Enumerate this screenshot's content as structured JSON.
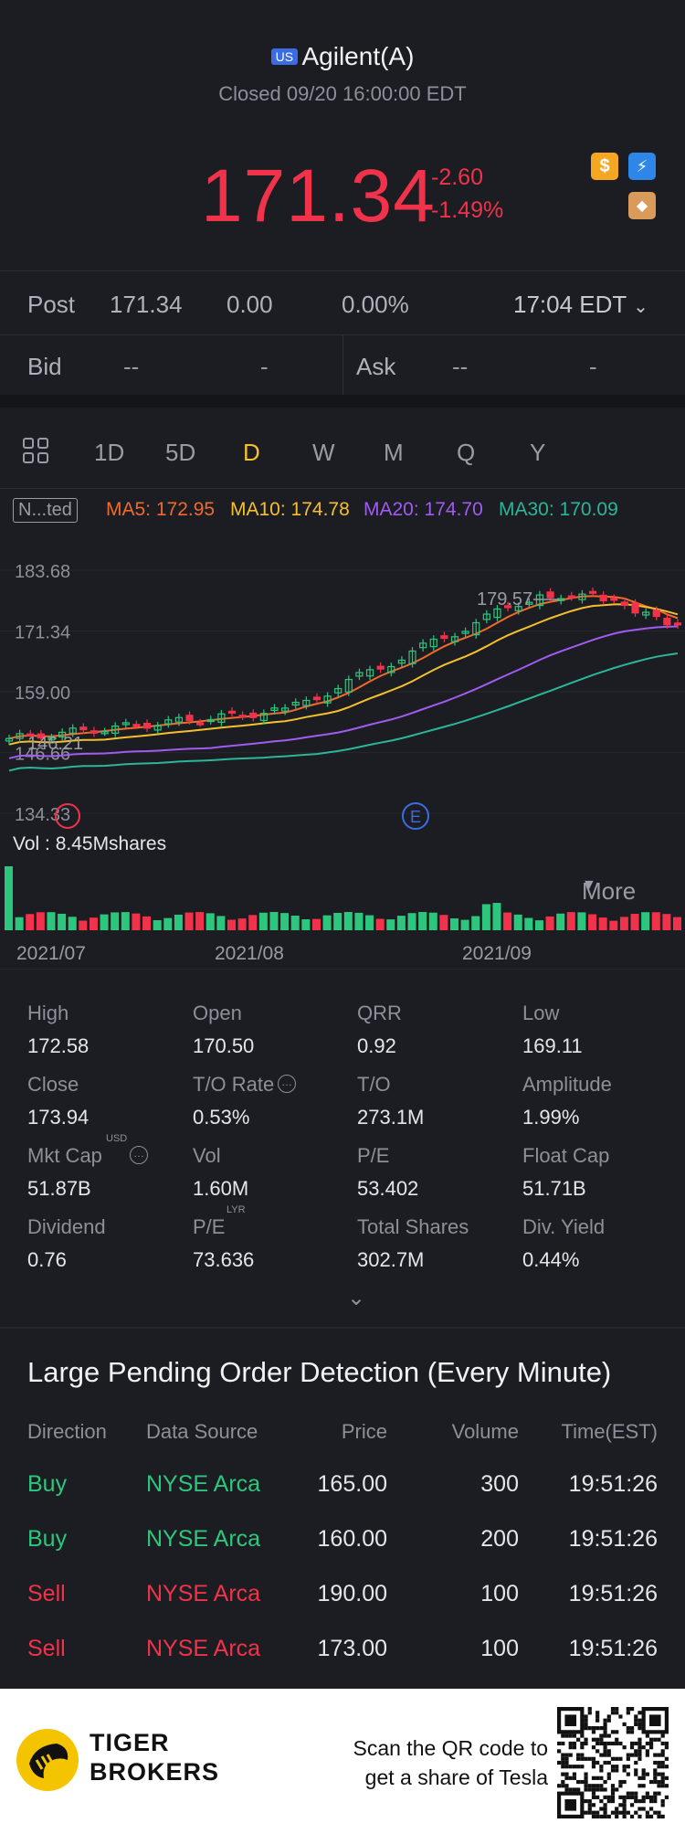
{
  "header": {
    "market_badge": "US",
    "title": "Agilent(A)",
    "status": "Closed 09/20 16:00:00 EDT"
  },
  "quote": {
    "price": "171.34",
    "change": "-2.60",
    "change_pct": "-1.49%",
    "icons": [
      "dollar-icon",
      "lightning-icon",
      "academy-icon"
    ]
  },
  "post": {
    "label": "Post",
    "price": "171.34",
    "change": "0.00",
    "pct": "0.00%",
    "time": "17:04 EDT"
  },
  "bidask": {
    "bid_label": "Bid",
    "bid_price": "--",
    "bid_size": "-",
    "ask_label": "Ask",
    "ask_price": "--",
    "ask_size": "-"
  },
  "tabs": {
    "items": [
      "1D",
      "5D",
      "D",
      "W",
      "M",
      "Q",
      "Y"
    ],
    "more": "More",
    "active": "D"
  },
  "chart_header": {
    "adjust": "N...ted",
    "ma5": "MA5: 172.95",
    "ma10": "MA10: 174.78",
    "ma20": "MA20: 174.70",
    "ma30": "MA30: 170.09"
  },
  "chart_data": {
    "type": "candlestick",
    "y_ticks": [
      "183.68",
      "171.34",
      "159.00",
      "146.66",
      "134.33"
    ],
    "high_label": "179.57",
    "low_label": "146.21",
    "x_labels": [
      "2021/07",
      "2021/08",
      "2021/09"
    ],
    "vol_label": "Vol : 8.45Mshares",
    "event_marker": "E",
    "colors": {
      "up": "#2dc67d",
      "down": "#f0334a",
      "ma5": "#f06a2c",
      "ma10": "#f5c02d",
      "ma20": "#a05cf0",
      "ma30": "#2bb59a"
    }
  },
  "stats": [
    {
      "label": "High",
      "value": "172.58"
    },
    {
      "label": "Open",
      "value": "170.50"
    },
    {
      "label": "QRR",
      "value": "0.92"
    },
    {
      "label": "Low",
      "value": "169.11"
    },
    {
      "label": "Close",
      "value": "173.94"
    },
    {
      "label": "T/O Rate",
      "value": "0.53%"
    },
    {
      "label": "T/O",
      "value": "273.1M"
    },
    {
      "label": "Amplitude",
      "value": "1.99%"
    },
    {
      "label": "Mkt Cap",
      "value": "51.87B"
    },
    {
      "label": "Vol",
      "value": "1.60M"
    },
    {
      "label": "P/E",
      "value": "53.402"
    },
    {
      "label": "Float Cap",
      "value": "51.71B"
    },
    {
      "label": "Dividend",
      "value": "0.76"
    },
    {
      "label": "P/E",
      "value": "73.636"
    },
    {
      "label": "Total Shares",
      "value": "302.7M"
    },
    {
      "label": "Div. Yield",
      "value": "0.44%"
    }
  ],
  "stat_sups": {
    "usd": "USD",
    "lyr": "LYR"
  },
  "orders": {
    "title": "Large Pending Order Detection (Every Minute)",
    "headers": [
      "Direction",
      "Data Source",
      "Price",
      "Volume",
      "Time(EST)"
    ],
    "rows": [
      {
        "dir": "Buy",
        "src": "NYSE Arca",
        "price": "165.00",
        "vol": "300",
        "time": "19:51:26"
      },
      {
        "dir": "Buy",
        "src": "NYSE Arca",
        "price": "160.00",
        "vol": "200",
        "time": "19:51:26"
      },
      {
        "dir": "Sell",
        "src": "NYSE Arca",
        "price": "190.00",
        "vol": "100",
        "time": "19:51:26"
      },
      {
        "dir": "Sell",
        "src": "NYSE Arca",
        "price": "173.00",
        "vol": "100",
        "time": "19:51:26"
      }
    ]
  },
  "footer": {
    "brand1": "TIGER",
    "brand2": "BROKERS",
    "cta1": "Scan the QR code to",
    "cta2": "get a share of Tesla"
  }
}
